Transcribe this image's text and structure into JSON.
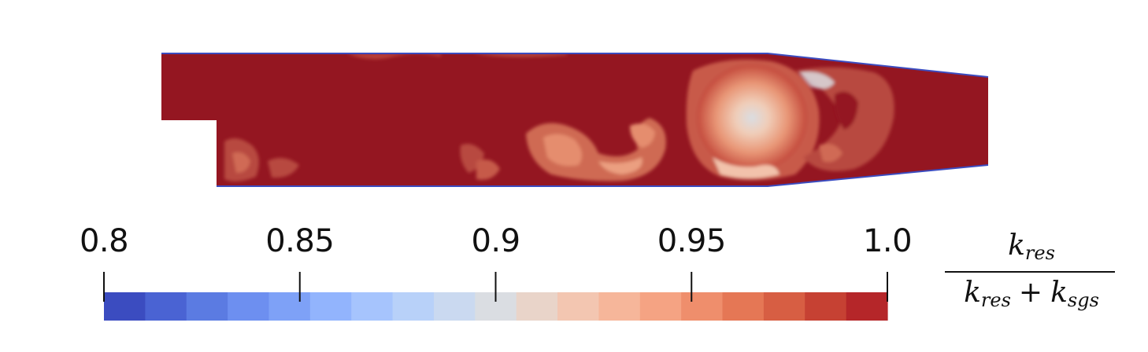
{
  "colorbar": {
    "ticks": [
      "0.8",
      "0.85",
      "0.9",
      "0.95",
      "1.0"
    ],
    "colors": [
      "#3b4cc0",
      "#4a63d3",
      "#5b7be2",
      "#6d8ff0",
      "#7ea1f7",
      "#92b4fd",
      "#a6c4fd",
      "#b8d1f9",
      "#cad9f0",
      "#dadde2",
      "#e9d4c9",
      "#f3c6b1",
      "#f6b69a",
      "#f5a383",
      "#ef8e6c",
      "#e57755",
      "#d75e43",
      "#c64133",
      "#b52629"
    ],
    "scale_min": 0.8,
    "scale_max": 1.0
  },
  "label": {
    "numerator": {
      "base": "k",
      "sub": "res"
    },
    "denominator": {
      "base1": "k",
      "sub1": "res",
      "op": "+",
      "base2": "k",
      "sub2": "sgs"
    }
  },
  "field": {
    "background_color": "#941621",
    "boundary_color": "#3b4cc0"
  }
}
